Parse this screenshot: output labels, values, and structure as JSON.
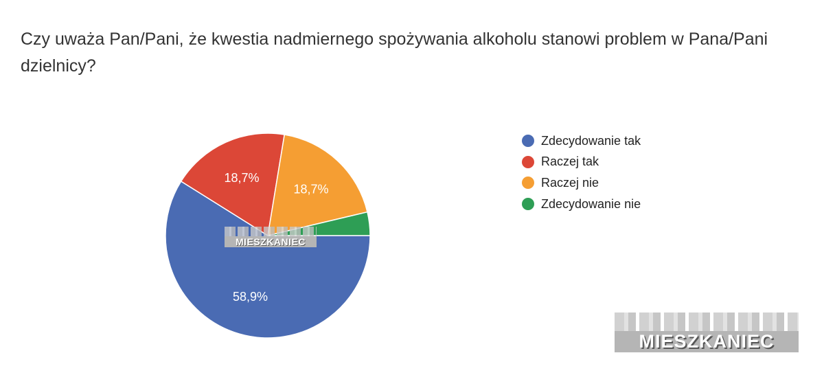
{
  "title": "Czy uważa Pan/Pani, że kwestia nadmiernego spożywania alkoholu stanowi problem w Pana/Pani dzielnicy?",
  "watermark": "MIESZKANIEC",
  "chart_data": {
    "type": "pie",
    "title": "Czy uważa Pan/Pani, że kwestia nadmiernego spożywania alkoholu stanowi problem w Pana/Pani dzielnicy?",
    "legend_position": "right",
    "slices": [
      {
        "label": "Zdecydowanie tak",
        "value": 58.9,
        "display": "58,9%",
        "color": "#4a6bb3"
      },
      {
        "label": "Raczej tak",
        "value": 18.7,
        "display": "18,7%",
        "color": "#dc4737"
      },
      {
        "label": "Raczej nie",
        "value": 18.7,
        "display": "18,7%",
        "color": "#f59e33"
      },
      {
        "label": "Zdecydowanie nie",
        "value": 3.7,
        "display": "",
        "color": "#2e9e55"
      }
    ]
  }
}
